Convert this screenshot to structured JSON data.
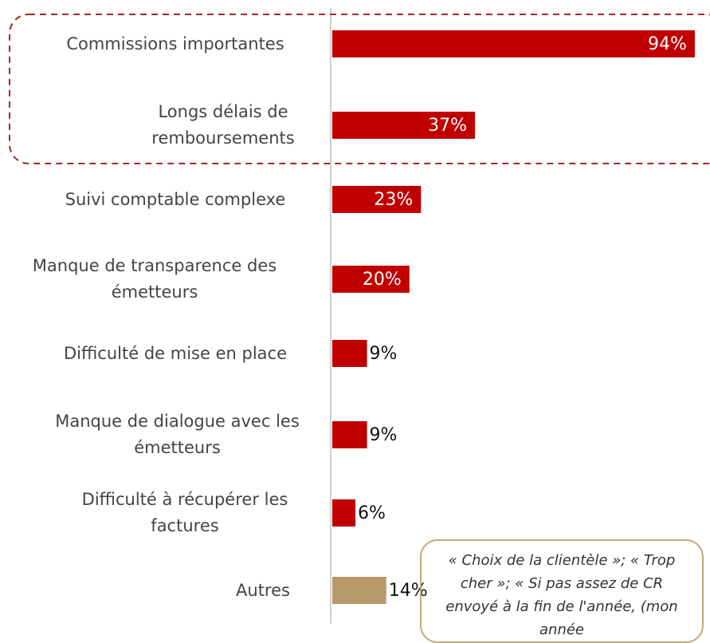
{
  "chart_data": {
    "type": "bar",
    "orientation": "horizontal",
    "categories": [
      "Commissions importantes",
      "Longs délais de remboursements",
      "Suivi comptable complexe",
      "Manque de transparence des émetteurs",
      "Difficulté de mise en place",
      "Manque de dialogue avec les émetteurs",
      "Difficulté à récupérer les factures",
      "Autres"
    ],
    "values": [
      94,
      37,
      23,
      20,
      9,
      9,
      6,
      14
    ],
    "value_labels": [
      "94%",
      "37%",
      "23%",
      "20%",
      "9%",
      "9%",
      "6%",
      "14%"
    ],
    "colors": [
      "#c00000",
      "#c00000",
      "#c00000",
      "#c00000",
      "#c00000",
      "#c00000",
      "#c00000",
      "#b8996a"
    ],
    "annotation": "« Choix de la clientèle »; « Trop cher »; « Si pas assez de CR envoyé à la fin de l'année, (mon année",
    "grid": false
  }
}
